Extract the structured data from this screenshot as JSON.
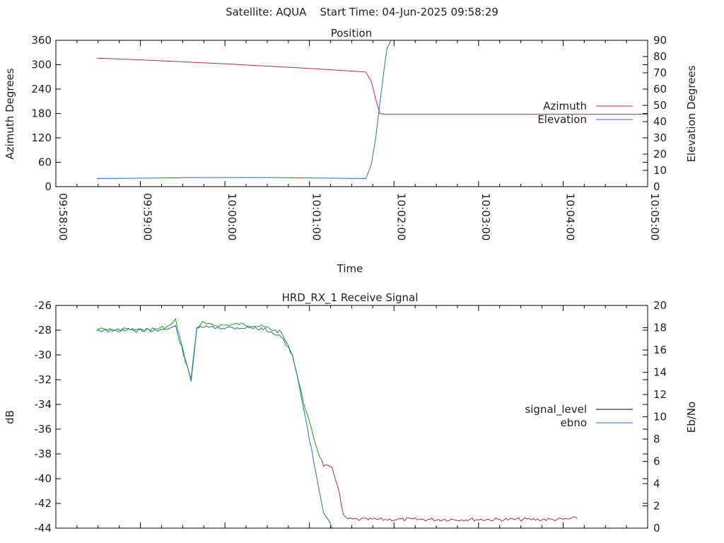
{
  "page_title": "Satellite: AQUA    Start Time: 04-Jun-2025 09:58:29",
  "colors": {
    "azimuth": "#b03040",
    "elevation": "#2a6fb5",
    "signal_level": "#000000",
    "ebno": "#2a6fb5",
    "signal_green": "#1aa01a",
    "signal_red": "#b03040",
    "frame": "#000000",
    "text": "#222222"
  },
  "chart_data": [
    {
      "type": "line",
      "title": "Position",
      "xlabel": "Time",
      "ylabel": "Azimuth Degrees",
      "y2label": "Elevation Degrees",
      "xlim": [
        "09:58:00",
        "10:05:00"
      ],
      "ylim": [
        0,
        360
      ],
      "y2lim": [
        0,
        90
      ],
      "xticks": [
        "09:58:00",
        "09:59:00",
        "10:00:00",
        "10:01:00",
        "10:02:00",
        "10:03:00",
        "10:04:00",
        "10:05:00"
      ],
      "yticks": [
        0,
        60,
        120,
        180,
        240,
        300,
        360
      ],
      "y2ticks": [
        0,
        10,
        20,
        30,
        40,
        50,
        60,
        70,
        80,
        90
      ],
      "legend": "right",
      "grid": false,
      "series": [
        {
          "name": "Azimuth",
          "axis": "left",
          "x": [
            "09:58:29",
            "09:59:00",
            "10:00:00",
            "10:01:00",
            "10:01:40",
            "10:01:44",
            "10:01:47",
            "10:01:50",
            "10:01:54",
            "10:02:30",
            "10:03:30",
            "10:04:30",
            "10:05:00"
          ],
          "y": [
            316,
            312,
            302,
            291,
            282,
            258,
            215,
            180,
            178,
            178,
            178,
            178,
            178
          ]
        },
        {
          "name": "Elevation",
          "axis": "right",
          "x": [
            "09:58:29",
            "09:59:00",
            "09:59:30",
            "10:00:00",
            "10:00:30",
            "10:01:00",
            "10:01:40",
            "10:01:44",
            "10:01:47",
            "10:01:50",
            "10:01:53",
            "10:01:55",
            "10:01:58"
          ],
          "y": [
            5,
            5.2,
            5.5,
            5.6,
            5.6,
            5.4,
            5,
            14,
            30,
            52,
            72,
            85,
            90
          ]
        }
      ]
    },
    {
      "type": "line",
      "title": "HRD_RX_1 Receive Signal",
      "xlabel": "",
      "ylabel": "dB",
      "y2label": "Eb/No",
      "ylim": [
        -44,
        -26
      ],
      "y2lim": [
        0,
        20
      ],
      "yticks": [
        -44,
        -42,
        -40,
        -38,
        -36,
        -34,
        -32,
        -30,
        -28,
        -26
      ],
      "y2ticks": [
        0,
        2,
        4,
        6,
        8,
        10,
        12,
        14,
        16,
        18,
        20
      ],
      "xlim": [
        "09:58:00",
        "10:05:00"
      ],
      "legend": "right",
      "grid": false,
      "series": [
        {
          "name": "signal_level",
          "axis": "left",
          "x": [
            "09:58:29",
            "09:58:40",
            "09:58:50",
            "09:59:00",
            "09:59:10",
            "09:59:20",
            "09:59:25",
            "09:59:32",
            "09:59:36",
            "09:59:40",
            "09:59:44",
            "09:59:50",
            "10:00:00",
            "10:00:10",
            "10:00:20",
            "10:00:30",
            "10:00:40",
            "10:00:48",
            "10:00:54",
            "10:01:00",
            "10:01:06",
            "10:01:10",
            "10:01:16",
            "10:01:20",
            "10:01:24",
            "10:01:26",
            "10:01:29",
            "10:01:40",
            "10:02:00",
            "10:02:30",
            "10:03:00",
            "10:03:30",
            "10:04:00",
            "10:04:10"
          ],
          "y": [
            -27.9,
            -28.0,
            -27.9,
            -28.0,
            -27.9,
            -27.7,
            -27.2,
            -30.5,
            -31.9,
            -27.8,
            -27.4,
            -27.6,
            -27.6,
            -27.5,
            -27.6,
            -27.8,
            -28.2,
            -30.0,
            -33.0,
            -35.5,
            -37.8,
            -38.9,
            -39.2,
            -40.5,
            -43.0,
            -43.2,
            -43.3,
            -43.3,
            -43.3,
            -43.3,
            -43.3,
            -43.3,
            -43.3,
            -43.2
          ]
        },
        {
          "name": "ebno",
          "axis": "right",
          "x": [
            "09:58:29",
            "09:58:40",
            "09:58:50",
            "09:59:00",
            "09:59:10",
            "09:59:20",
            "09:59:25",
            "09:59:32",
            "09:59:36",
            "09:59:40",
            "09:59:44",
            "09:59:50",
            "10:00:00",
            "10:00:10",
            "10:00:20",
            "10:00:30",
            "10:00:40",
            "10:00:48",
            "10:00:54",
            "10:01:00",
            "10:01:06",
            "10:01:10",
            "10:01:16"
          ],
          "y": [
            17.8,
            17.7,
            17.8,
            17.7,
            17.8,
            17.9,
            18.1,
            15.0,
            13.3,
            17.8,
            18.1,
            18.0,
            18.0,
            18.0,
            18.0,
            17.8,
            17.2,
            15.5,
            12.0,
            8.0,
            4.0,
            1.5,
            0
          ]
        }
      ]
    }
  ]
}
